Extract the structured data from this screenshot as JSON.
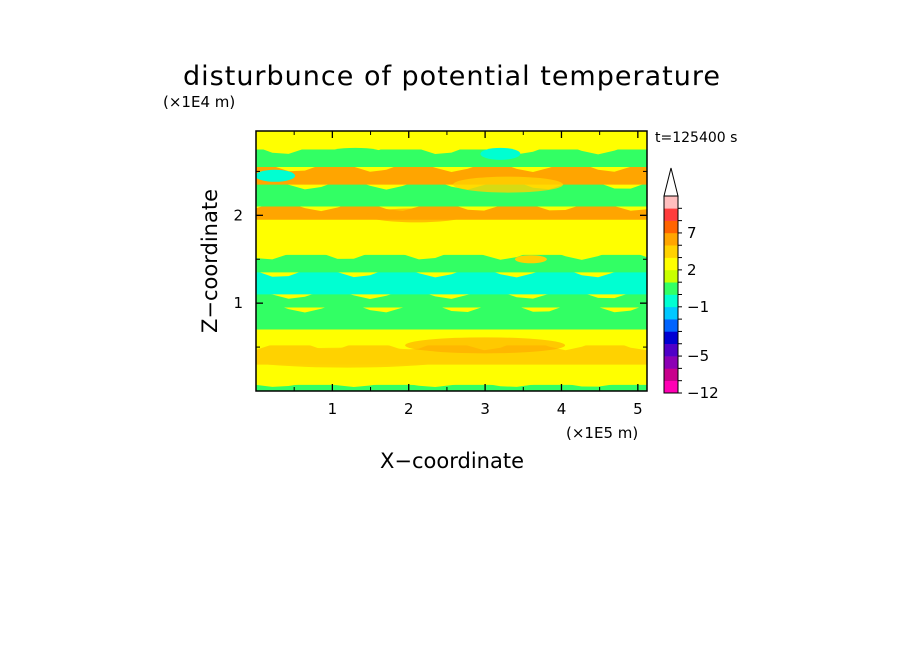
{
  "chart_data": {
    "type": "heatmap",
    "title": "disturbunce of potential temperature",
    "xlabel": "X−coordinate",
    "ylabel": "Z−coordinate",
    "x_unit_label": "(×1E5 m)",
    "y_unit_label": "(×1E4 m)",
    "time_label": "t=125400 s",
    "xlim": [
      0,
      5.12
    ],
    "ylim": [
      0,
      2.96
    ],
    "x_ticks": [
      "1",
      "2",
      "3",
      "4",
      "5"
    ],
    "y_ticks": [
      "1",
      "2"
    ],
    "colorbar": {
      "labels": [
        "7",
        "2",
        "−1",
        "−5",
        "−12"
      ],
      "levels": [
        -12,
        -9,
        -7,
        -5,
        -4,
        -3,
        -2,
        -1,
        0,
        1,
        2,
        3,
        5,
        7,
        9,
        12
      ],
      "colors": [
        "#ff00b4",
        "#c8008c",
        "#8c00b4",
        "#5000c8",
        "#0000d2",
        "#0064ff",
        "#00c8ff",
        "#00ffd2",
        "#32ff64",
        "#c8ff00",
        "#ffff00",
        "#ffd200",
        "#ffa500",
        "#ff6400",
        "#ff3c3c",
        "#ffbebe"
      ],
      "extend_max": true
    },
    "bands": [
      {
        "z": [
          0.0,
          0.07
        ],
        "value": "green"
      },
      {
        "z": [
          0.07,
          0.3
        ],
        "value": "yellow"
      },
      {
        "z": [
          0.3,
          0.52
        ],
        "value": "orange-yellow"
      },
      {
        "z": [
          0.52,
          0.7
        ],
        "value": "yellow"
      },
      {
        "z": [
          0.7,
          0.95
        ],
        "value": "green"
      },
      {
        "z": [
          0.95,
          1.1
        ],
        "value": "green-cyan"
      },
      {
        "z": [
          1.1,
          1.35
        ],
        "value": "cyan"
      },
      {
        "z": [
          1.35,
          1.55
        ],
        "value": "green"
      },
      {
        "z": [
          1.55,
          1.95
        ],
        "value": "yellow"
      },
      {
        "z": [
          1.95,
          2.1
        ],
        "value": "orange"
      },
      {
        "z": [
          2.1,
          2.35
        ],
        "value": "green"
      },
      {
        "z": [
          2.35,
          2.55
        ],
        "value": "orange"
      },
      {
        "z": [
          2.55,
          2.75
        ],
        "value": "green"
      },
      {
        "z": [
          2.75,
          2.96
        ],
        "value": "yellow"
      }
    ]
  }
}
